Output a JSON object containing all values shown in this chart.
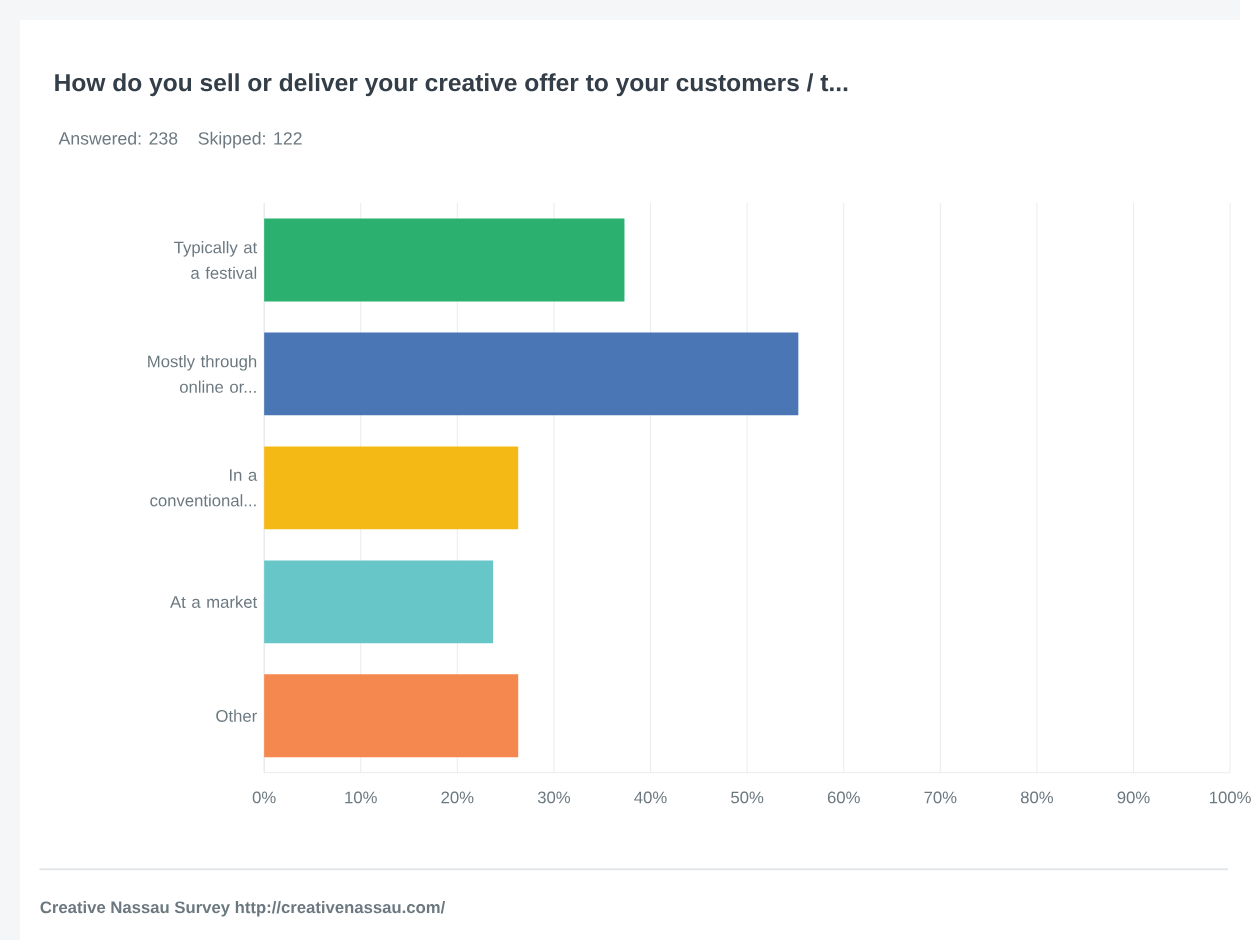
{
  "chart_data": {
    "type": "bar",
    "orientation": "horizontal",
    "title": "How do you sell or deliver your creative offer to your customers / t...",
    "subtitle": "Answered: 238    Skipped: 122",
    "categories": [
      "Typically at a festival",
      "Mostly through online or...",
      "In a conventional...",
      "At a market",
      "Other"
    ],
    "values": [
      37.3,
      55.3,
      26.3,
      23.7,
      26.3
    ],
    "colors": [
      "#2bb06f",
      "#4a76b5",
      "#f5b915",
      "#67c6c8",
      "#f4884e"
    ],
    "xlim": [
      0,
      100
    ],
    "xticks": [
      {
        "value": 0,
        "label": "0%"
      },
      {
        "value": 10,
        "label": "10%"
      },
      {
        "value": 20,
        "label": "20%"
      },
      {
        "value": 30,
        "label": "30%"
      },
      {
        "value": 40,
        "label": "40%"
      },
      {
        "value": 50,
        "label": "50%"
      },
      {
        "value": 60,
        "label": "60%"
      },
      {
        "value": 70,
        "label": "70%"
      },
      {
        "value": 80,
        "label": "80%"
      },
      {
        "value": 90,
        "label": "90%"
      },
      {
        "value": 100,
        "label": "100%"
      }
    ],
    "grid": "x",
    "annotations": [
      "Creative Nassau Survey http://creativenassau.com/"
    ]
  }
}
